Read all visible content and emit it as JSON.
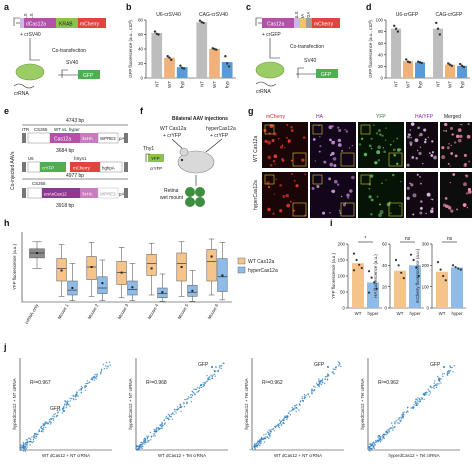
{
  "labels": {
    "a": "a",
    "b": "b",
    "c": "c",
    "d": "d",
    "e": "e",
    "f": "f",
    "g": "g",
    "h": "h",
    "i": "i",
    "j": "j"
  },
  "panel_a": {
    "nls1": "NLS",
    "nls2": "NLS",
    "dcas": "dCas12a",
    "krab": "KRAB",
    "mch": "mCherry",
    "crsv40": "+ crSV40",
    "cotrans": "Co-transfection",
    "sv40": "SV40",
    "gfp": "GFP",
    "crrna": "crRNA"
  },
  "panel_c": {
    "nls": "NLS",
    "ha": "HA",
    "p2a": "P2A",
    "cas": "Cas12a",
    "mch": "mCherry",
    "crgfp": "+ crGFP",
    "cotrans": "Co-transfection",
    "sv40": "SV40",
    "gfp": "GFP",
    "crrna": "crRNA"
  },
  "panel_e": {
    "side": "Co-injected AAVs",
    "len1": "4743 bp",
    "itr": "ITR",
    "cs265": "CS265",
    "wtvshyper": "WT vs. hyper",
    "cas": "Cas12a",
    "ha3": "3xHA",
    "wpre": "WPRE3",
    "pa": "pA",
    "len2": "3684 bp",
    "u6": "U6",
    "hsyn": "hSyn1",
    "cryfp": "crYFP",
    "mch": "mCherry",
    "hgh": "hghpA",
    "len3": "4977 bp",
    "cs265b": "CS265",
    "enas": "enAsCas12",
    "ha3b": "3xHA",
    "wpreb": "WPRE3",
    "pab": "pA",
    "len4": "3918 bp"
  },
  "panel_f": {
    "title": "Bilateral AAV injections",
    "wt": "WT Cas12a",
    "wt2": "+ crYFP",
    "hyper": "hyperCas12a",
    "hyper2": "+ crYFP",
    "thy1": "Thy1",
    "yfp": "YFP",
    "cryfp": "crYFP",
    "retina": "Retina",
    "wholemount": "wet mount"
  },
  "panel_g": {
    "h_mch": "mCherry",
    "h_ha": "HA",
    "h_yfp": "YFP",
    "h_merge1": "HA/YFP",
    "h_merge2": "Merged",
    "row1": "WT Cas12a",
    "row2": "hyperCas12a"
  },
  "chart_data": [
    {
      "id": "b",
      "type": "bar",
      "ylabel": "GFP fluorescence (a.u., x10³)",
      "ylim": [
        0,
        80
      ],
      "yticks": [
        0,
        20,
        40,
        60,
        80
      ],
      "groups": [
        {
          "name": "U6-crSV40",
          "categories": [
            "NT",
            "WT",
            "hyp"
          ],
          "values": [
            62,
            28,
            15
          ],
          "colors": [
            "#bdbdbd",
            "#f0b27a",
            "#5b9bd5"
          ],
          "points": [
            [
              64,
              61,
              60
            ],
            [
              30,
              28,
              25
            ],
            [
              17,
              14,
              13
            ]
          ]
        },
        {
          "name": "CAG-crSV40",
          "categories": [
            "NT",
            "WT",
            "hyp"
          ],
          "values": [
            77,
            40,
            22
          ],
          "colors": [
            "#bdbdbd",
            "#f0b27a",
            "#5b9bd5"
          ],
          "points": [
            [
              79,
              77,
              76
            ],
            [
              41,
              40,
              39
            ],
            [
              30,
              20,
              16
            ]
          ]
        }
      ]
    },
    {
      "id": "d",
      "type": "bar",
      "ylabel": "GFP fluorescence (a.u., x10³)",
      "ylim": [
        0,
        100
      ],
      "yticks": [
        0,
        20,
        40,
        60,
        80,
        100
      ],
      "groups": [
        {
          "name": "U6-crGFP",
          "categories": [
            "NT",
            "WT",
            "hyp"
          ],
          "values": [
            85,
            29,
            27
          ],
          "colors": [
            "#bdbdbd",
            "#f0b27a",
            "#5b9bd5"
          ],
          "points": [
            [
              90,
              85,
              80
            ],
            [
              32,
              28,
              27
            ],
            [
              28,
              27,
              26
            ]
          ]
        },
        {
          "name": "CAG-crGFP",
          "categories": [
            "NT",
            "WT",
            "hyp"
          ],
          "values": [
            85,
            23,
            21
          ],
          "colors": [
            "#bdbdbd",
            "#f0b27a",
            "#5b9bd5"
          ],
          "points": [
            [
              95,
              85,
              75
            ],
            [
              25,
              23,
              21
            ],
            [
              24,
              21,
              19
            ]
          ]
        }
      ]
    },
    {
      "id": "h",
      "type": "box",
      "ylabel": "YFP fluorescence (a.u.)",
      "categories": [
        "crRNA-only",
        "Mouse 1",
        "Mouse 2",
        "Mouse 3",
        "Mouse 4",
        "Mouse 5",
        "Mouse 6"
      ],
      "legend": [
        "WT Cas12a",
        "hyperCas12a"
      ],
      "legend_position": "right",
      "colors": {
        "ctrl": "#8c8c8c",
        "wt": "#f5c48a",
        "hyper": "#8fbbe8"
      },
      "boxes": [
        {
          "cat": 0,
          "kind": "ctrl",
          "q1": 0.63,
          "med": 0.7,
          "q3": 0.76,
          "lo": 0.48,
          "hi": 0.86,
          "mean": 0.7
        },
        {
          "cat": 1,
          "kind": "wt",
          "q1": 0.3,
          "med": 0.48,
          "q3": 0.62,
          "lo": 0.08,
          "hi": 0.82,
          "mean": 0.45
        },
        {
          "cat": 1,
          "kind": "hyper",
          "q1": 0.1,
          "med": 0.17,
          "q3": 0.3,
          "lo": 0.02,
          "hi": 0.55,
          "mean": 0.2
        },
        {
          "cat": 2,
          "kind": "wt",
          "q1": 0.32,
          "med": 0.5,
          "q3": 0.65,
          "lo": 0.08,
          "hi": 0.85,
          "mean": 0.5
        },
        {
          "cat": 2,
          "kind": "hyper",
          "q1": 0.12,
          "med": 0.2,
          "q3": 0.36,
          "lo": 0.02,
          "hi": 0.6,
          "mean": 0.27
        },
        {
          "cat": 3,
          "kind": "wt",
          "q1": 0.25,
          "med": 0.42,
          "q3": 0.58,
          "lo": 0.06,
          "hi": 0.78,
          "mean": 0.42
        },
        {
          "cat": 3,
          "kind": "hyper",
          "q1": 0.1,
          "med": 0.18,
          "q3": 0.3,
          "lo": 0.02,
          "hi": 0.55,
          "mean": 0.21
        },
        {
          "cat": 4,
          "kind": "wt",
          "q1": 0.38,
          "med": 0.55,
          "q3": 0.68,
          "lo": 0.1,
          "hi": 0.84,
          "mean": 0.48
        },
        {
          "cat": 4,
          "kind": "hyper",
          "q1": 0.06,
          "med": 0.12,
          "q3": 0.2,
          "lo": 0.01,
          "hi": 0.4,
          "mean": 0.14
        },
        {
          "cat": 5,
          "kind": "wt",
          "q1": 0.3,
          "med": 0.55,
          "q3": 0.7,
          "lo": 0.08,
          "hi": 0.86,
          "mean": 0.5
        },
        {
          "cat": 5,
          "kind": "hyper",
          "q1": 0.08,
          "med": 0.14,
          "q3": 0.24,
          "lo": 0.01,
          "hi": 0.45,
          "mean": 0.16
        },
        {
          "cat": 6,
          "kind": "wt",
          "q1": 0.3,
          "med": 0.58,
          "q3": 0.75,
          "lo": 0.1,
          "hi": 0.9,
          "mean": 0.65
        },
        {
          "cat": 6,
          "kind": "hyper",
          "q1": 0.15,
          "med": 0.36,
          "q3": 0.62,
          "lo": 0.03,
          "hi": 0.85,
          "mean": 0.38
        }
      ]
    },
    {
      "id": "i1",
      "type": "bar",
      "ylabel": "YFP fluorescence (a.u.)",
      "categories": [
        "WT",
        "hyper"
      ],
      "values": [
        140,
        80
      ],
      "ylim": [
        0,
        200
      ],
      "yticks": [
        0,
        50,
        100,
        150,
        200
      ],
      "colors": [
        "#f5c48a",
        "#8fbbe8"
      ],
      "annotation": "*",
      "points": [
        [
          170,
          150,
          135,
          125,
          118
        ],
        [
          115,
          95,
          80,
          60,
          48
        ]
      ]
    },
    {
      "id": "i2",
      "type": "bar",
      "ylabel": "HA fluorescence (a.u.)",
      "categories": [
        "WT",
        "hyper"
      ],
      "values": [
        35,
        40
      ],
      "ylim": [
        0,
        60
      ],
      "yticks": [
        0,
        20,
        40,
        60
      ],
      "colors": [
        "#f5c48a",
        "#8fbbe8"
      ],
      "annotation": "ns",
      "points": [
        [
          45,
          40,
          33,
          28
        ],
        [
          50,
          45,
          38,
          30
        ]
      ]
    },
    {
      "id": "i3",
      "type": "bar",
      "ylabel": "mCherry fluorescence (a.u.)",
      "categories": [
        "WT",
        "hyper"
      ],
      "values": [
        170,
        190
      ],
      "ylim": [
        0,
        300
      ],
      "yticks": [
        0,
        100,
        200,
        300
      ],
      "colors": [
        "#f5c48a",
        "#8fbbe8"
      ],
      "annotation": "ns",
      "points": [
        [
          215,
          180,
          150,
          130
        ],
        [
          200,
          192,
          185,
          180
        ]
      ]
    },
    {
      "id": "j",
      "type": "scatter",
      "panels": [
        {
          "ylabel": "hyperdCas12 + NT crRNA",
          "xlabel": "WT dCas12 + NT crRNA",
          "r2": "R²=0.967",
          "label": "GFP",
          "label_pos": "bottom"
        },
        {
          "ylabel": "hyperdCas12 + NT crRNA",
          "xlabel": "WT dCas12 + Tet crRNA",
          "r2": "R²=0.968",
          "label": "GFP",
          "label_pos": "top"
        },
        {
          "ylabel": "hyperdCas12 + Tet crRNA",
          "xlabel": "WT dCas12 + NT crRNA",
          "r2": "R²=0.962",
          "label": "GFP",
          "label_pos": "top"
        },
        {
          "ylabel": "hyperdCas12 + Tet crRNA",
          "xlabel": "hyperdCas12 + Tet crRNA",
          "r2": "R²=0.962",
          "label": "GFP",
          "label_pos": "top"
        }
      ]
    }
  ]
}
